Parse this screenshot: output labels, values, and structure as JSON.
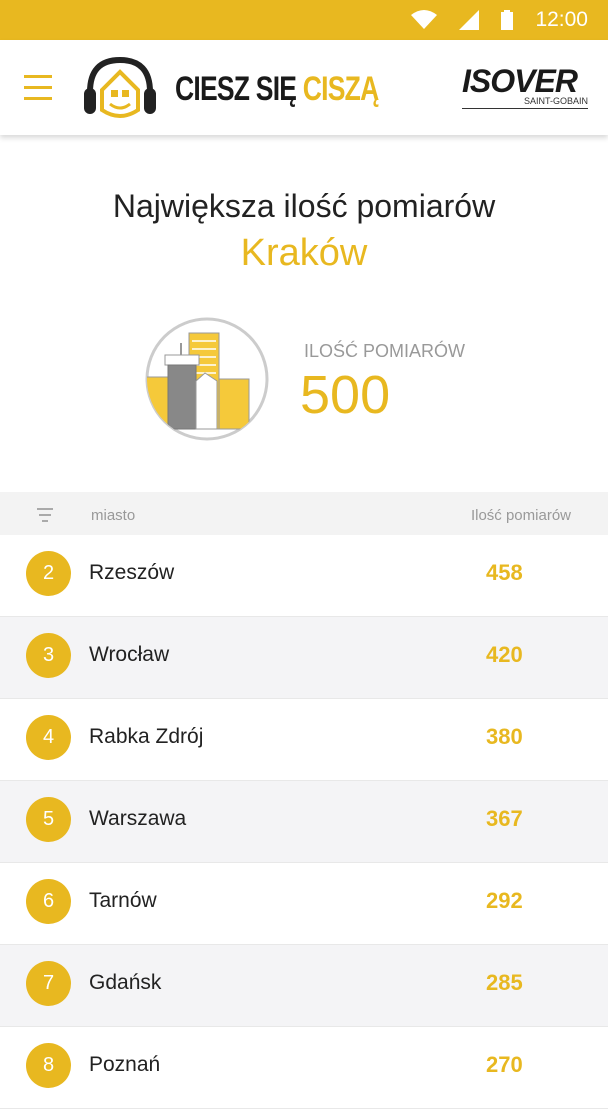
{
  "status": {
    "time": "12:00"
  },
  "header": {
    "brand_dark": "CIESZ SIĘ ",
    "brand_accent": "CISZĄ",
    "partner_logo": "ISOVER",
    "partner_sub": "SAINT-GOBAIN"
  },
  "hero": {
    "title": "Największa ilość pomiarów",
    "city": "Kraków",
    "count_label": "ILOŚĆ POMIARÓW",
    "count": "500"
  },
  "table": {
    "col_city": "miasto",
    "col_count": "Ilość pomiarów",
    "rows": [
      {
        "rank": "2",
        "city": "Rzeszów",
        "count": "458"
      },
      {
        "rank": "3",
        "city": "Wrocław",
        "count": "420"
      },
      {
        "rank": "4",
        "city": "Rabka Zdrój",
        "count": "380"
      },
      {
        "rank": "5",
        "city": "Warszawa",
        "count": "367"
      },
      {
        "rank": "6",
        "city": "Tarnów",
        "count": "292"
      },
      {
        "rank": "7",
        "city": "Gdańsk",
        "count": "285"
      },
      {
        "rank": "8",
        "city": "Poznań",
        "count": "270"
      }
    ]
  },
  "colors": {
    "accent": "#e8b820"
  }
}
